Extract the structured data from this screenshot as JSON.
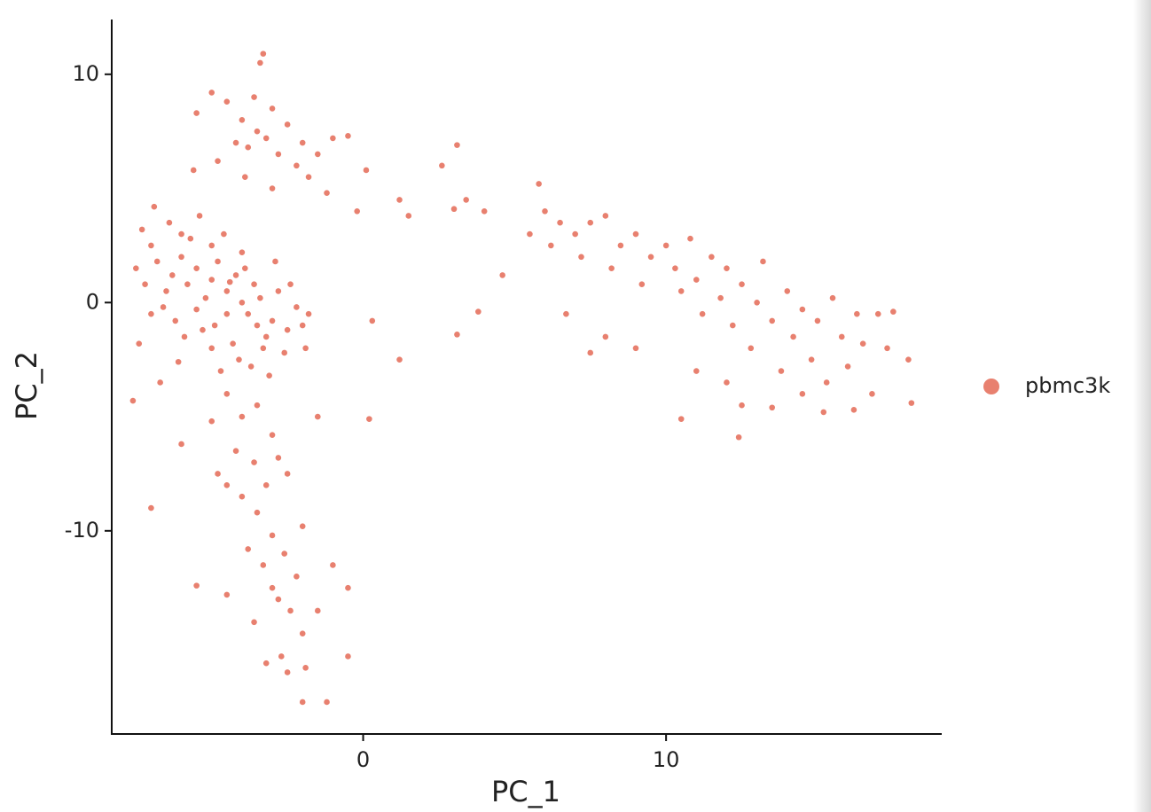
{
  "chart_data": {
    "type": "scatter",
    "xlabel": "PC_1",
    "ylabel": "PC_2",
    "xlim": [
      -8.3,
      19.1
    ],
    "ylim": [
      -18.9,
      12.4
    ],
    "xticks": [
      0,
      10
    ],
    "yticks": [
      -10,
      0,
      10
    ],
    "legend": "right",
    "x": [
      -5.0,
      -4.5,
      -5.5,
      -4.0,
      -6.0,
      -5.2,
      -4.8,
      -3.8,
      -6.3,
      -5.8,
      -4.2,
      -3.5,
      -6.5,
      -5.0,
      -4.5,
      -3.2,
      -6.8,
      -5.5,
      -4.0,
      -3.0,
      -7.0,
      -6.0,
      -5.3,
      -4.3,
      -3.6,
      -2.8,
      -7.2,
      -6.6,
      -5.7,
      -4.6,
      -3.3,
      -2.5,
      -7.5,
      -6.2,
      -5.0,
      -4.1,
      -3.9,
      -2.2,
      -7.0,
      -6.4,
      -5.4,
      -4.9,
      -3.7,
      -2.6,
      -2.0,
      -7.3,
      -6.9,
      -5.9,
      -4.4,
      -3.4,
      -2.4,
      -1.8,
      -7.4,
      -6.1,
      -4.7,
      -3.1,
      -2.9,
      -1.9,
      -7.6,
      -6.7,
      -4.0,
      -3.5,
      -3.0,
      -3.8,
      -3.2,
      -4.5,
      -2.8,
      -3.6,
      -4.2,
      -2.5,
      -5.0,
      -3.4,
      -4.8,
      -2.2,
      -3.9,
      -5.5,
      -2.0,
      -1.5,
      -1.0,
      -0.5,
      -5.6,
      -3.0,
      -1.8,
      -1.2,
      -3.3,
      -4.5,
      -4.0,
      -3.5,
      -5.0,
      -3.0,
      -4.2,
      -3.6,
      -4.8,
      -3.2,
      -2.8,
      -4.0,
      -3.5,
      -2.5,
      -4.5,
      -3.0,
      -3.8,
      -2.6,
      -3.3,
      -2.2,
      -3.0,
      -2.8,
      -2.4,
      -3.6,
      -2.0,
      -2.7,
      -3.2,
      -2.5,
      -1.9,
      -2.0,
      -1.2,
      -4.5,
      -5.5,
      -1.5,
      -0.5,
      -0.5,
      -6.0,
      -7.0,
      -1.5,
      -2.0,
      -1.0,
      -0.2,
      0.1,
      1.2,
      1.5,
      2.6,
      3.0,
      3.1,
      3.4,
      4.0,
      4.6,
      0.3,
      1.2,
      3.1,
      3.8,
      0.2,
      5.5,
      6.0,
      6.5,
      5.8,
      6.2,
      7.0,
      7.5,
      7.2,
      8.0,
      8.5,
      8.2,
      9.0,
      9.5,
      9.2,
      10.0,
      10.3,
      10.5,
      10.8,
      11.0,
      11.2,
      11.5,
      11.8,
      12.0,
      12.2,
      12.5,
      12.8,
      13.0,
      13.2,
      13.5,
      13.8,
      14.0,
      14.2,
      14.5,
      14.8,
      15.0,
      15.3,
      15.5,
      15.8,
      16.0,
      16.3,
      16.5,
      16.8,
      17.0,
      17.3,
      17.5,
      18.0,
      18.1,
      12.0,
      12.5,
      13.5,
      14.5,
      15.2,
      16.2,
      10.5,
      12.4,
      9.0,
      8.0,
      6.7,
      7.5,
      11.0
    ],
    "series": [
      {
        "name": "pbmc3k",
        "color": "#e8806f",
        "values": [
          1.0,
          0.5,
          1.5,
          0.0,
          2.0,
          0.2,
          1.8,
          -0.5,
          1.2,
          0.8,
          1.2,
          -1.0,
          0.5,
          2.5,
          -0.5,
          -1.5,
          1.8,
          -0.3,
          2.2,
          -0.8,
          2.5,
          3.0,
          -1.2,
          -1.8,
          0.8,
          0.5,
          0.8,
          -0.2,
          2.8,
          3.0,
          -2.0,
          -1.2,
          1.5,
          -0.8,
          -2.0,
          -2.5,
          1.5,
          -0.2,
          -0.5,
          3.5,
          3.8,
          -1.0,
          -2.8,
          -2.2,
          -1.0,
          3.2,
          4.2,
          -1.5,
          0.9,
          0.2,
          0.8,
          -0.5,
          -1.8,
          -2.6,
          -3.0,
          -3.2,
          1.8,
          -2.0,
          -4.3,
          -3.5,
          8.0,
          7.5,
          8.5,
          6.8,
          7.2,
          8.8,
          6.5,
          9.0,
          7.0,
          7.8,
          9.2,
          10.5,
          6.2,
          6.0,
          5.5,
          8.3,
          7.0,
          6.5,
          7.2,
          7.3,
          5.8,
          5.0,
          5.5,
          4.8,
          10.9,
          -4.0,
          -5.0,
          -4.5,
          -5.2,
          -5.8,
          -6.5,
          -7.0,
          -7.5,
          -8.0,
          -6.8,
          -8.5,
          -9.2,
          -7.5,
          -8.0,
          -10.2,
          -10.8,
          -11.0,
          -11.5,
          -12.0,
          -12.5,
          -13.0,
          -13.5,
          -14.0,
          -14.5,
          -15.5,
          -15.8,
          -16.2,
          -16.0,
          -17.5,
          -17.5,
          -12.8,
          -12.4,
          -13.5,
          -12.5,
          -15.5,
          -6.2,
          -9.0,
          -5.0,
          -9.8,
          -11.5,
          4.0,
          5.8,
          4.5,
          3.8,
          6.0,
          4.1,
          6.9,
          4.5,
          4.0,
          1.2,
          -0.8,
          -2.5,
          -1.4,
          -0.4,
          -5.1,
          3.0,
          4.0,
          3.5,
          5.2,
          2.5,
          3.0,
          3.5,
          2.0,
          3.8,
          2.5,
          1.5,
          3.0,
          2.0,
          0.8,
          2.5,
          1.5,
          0.5,
          2.8,
          1.0,
          -0.5,
          2.0,
          0.2,
          1.5,
          -1.0,
          0.8,
          -2.0,
          0.0,
          1.8,
          -0.8,
          -3.0,
          0.5,
          -1.5,
          -0.3,
          -2.5,
          -0.8,
          -3.5,
          0.2,
          -1.5,
          -2.8,
          -0.5,
          -1.8,
          -4.0,
          -0.5,
          -2.0,
          -0.4,
          -2.5,
          -4.4,
          -3.5,
          -4.5,
          -4.6,
          -4.0,
          -4.8,
          -4.7,
          -5.1,
          -5.9,
          -2.0,
          -1.5,
          -0.5,
          -2.2,
          -3.0
        ]
      }
    ]
  }
}
